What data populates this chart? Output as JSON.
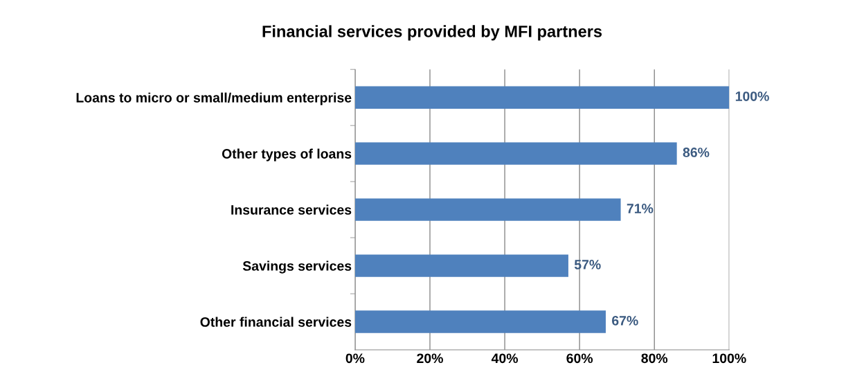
{
  "chart_data": {
    "type": "bar",
    "orientation": "horizontal",
    "title": "Financial services provided by MFI partners",
    "categories": [
      "Loans to micro or small/medium enterprise",
      "Other types of loans",
      "Insurance services",
      "Savings services",
      "Other financial services"
    ],
    "values": [
      100,
      86,
      71,
      57,
      67
    ],
    "value_labels": [
      "100%",
      "86%",
      "71%",
      "57%",
      "67%"
    ],
    "color": "#4f81bd",
    "xlim": [
      0,
      100
    ],
    "xticks": [
      {
        "value": 0,
        "label": "0%"
      },
      {
        "value": 20,
        "label": "20%"
      },
      {
        "value": 40,
        "label": "40%"
      },
      {
        "value": 60,
        "label": "60%"
      },
      {
        "value": 80,
        "label": "80%"
      },
      {
        "value": 100,
        "label": "100%"
      }
    ],
    "grid": "x",
    "legend": false
  }
}
